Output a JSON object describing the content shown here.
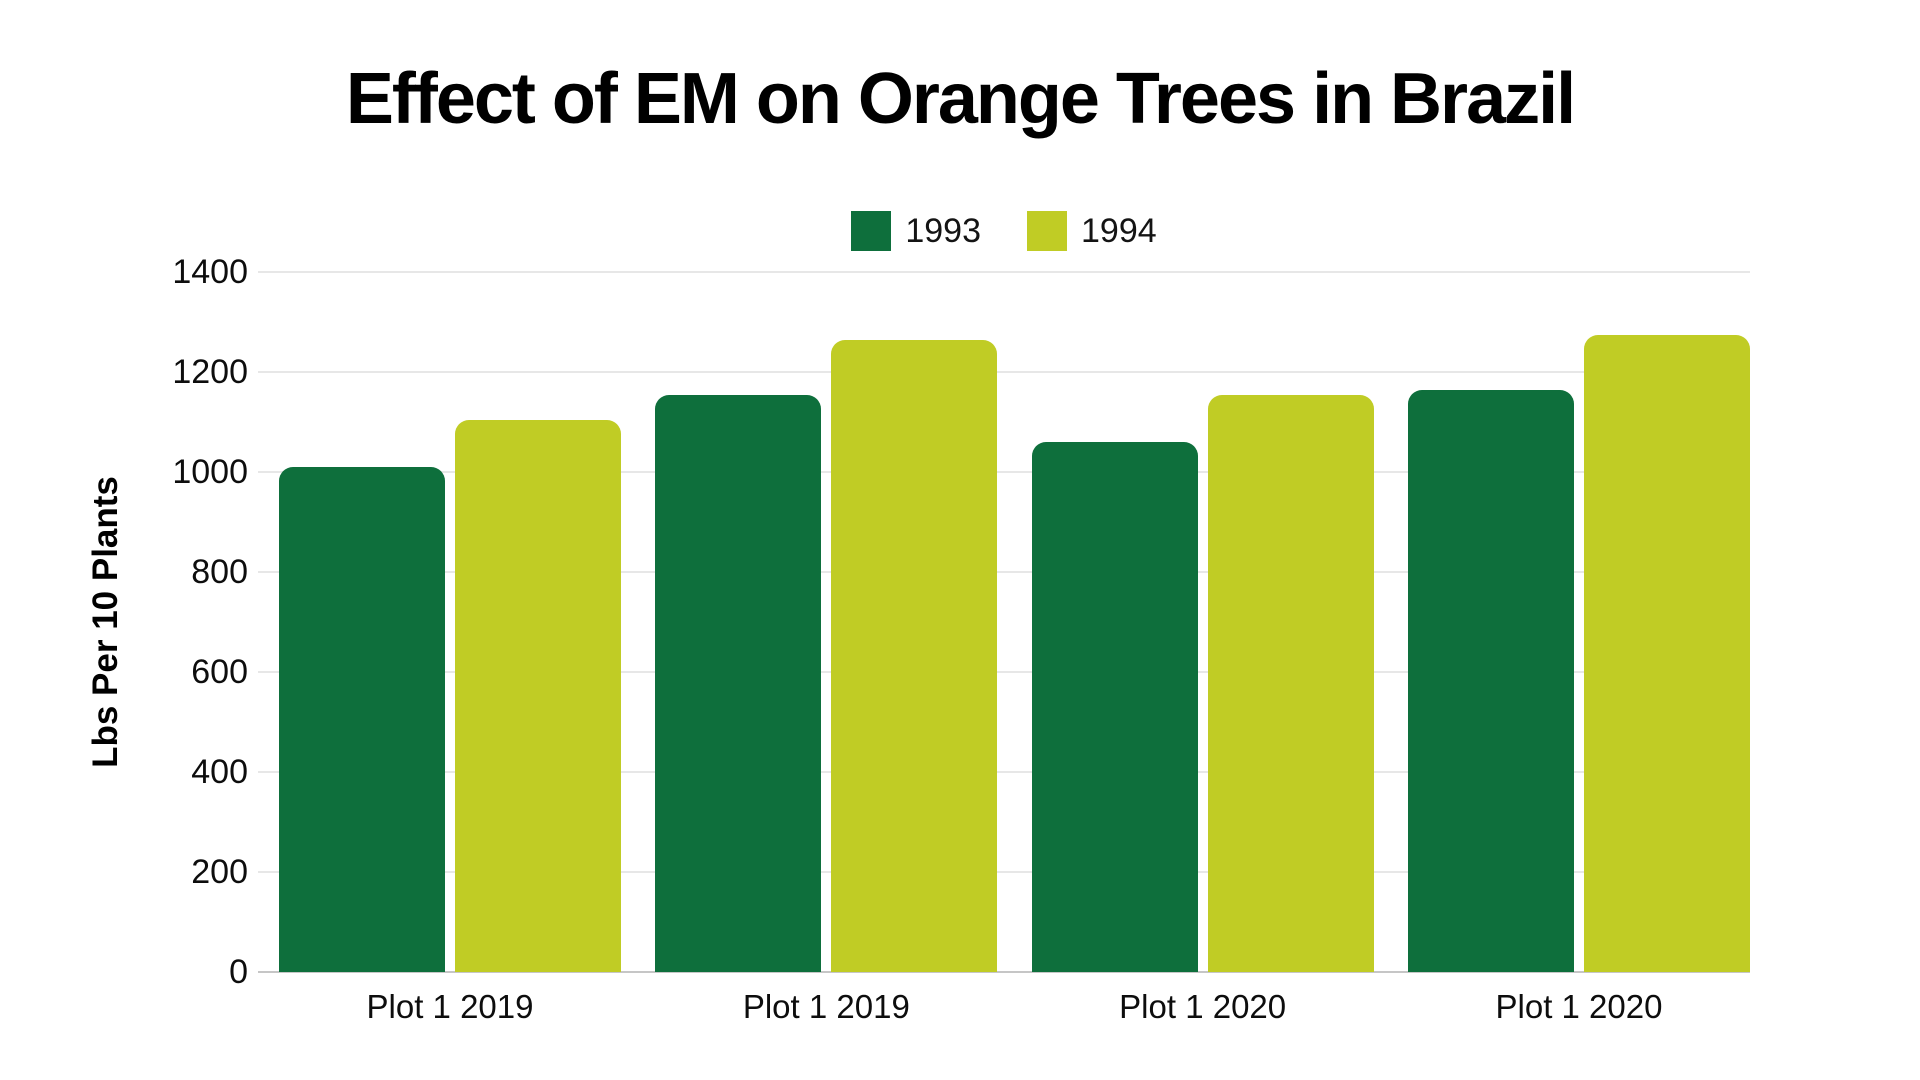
{
  "title": "Effect of EM on Orange Trees in Brazil",
  "chart_data": {
    "type": "bar",
    "title": "Effect of EM on Orange Trees in Brazil",
    "categories": [
      "Plot 1 2019",
      "Plot 1 2019",
      "Plot 1 2020",
      "Plot 1 2020"
    ],
    "series": [
      {
        "name": "1993",
        "color": "#0e6f3c",
        "values": [
          1010,
          1155,
          1060,
          1165
        ]
      },
      {
        "name": "1994",
        "color": "#c0cc25",
        "values": [
          1105,
          1265,
          1155,
          1275
        ]
      }
    ],
    "xlabel": "",
    "ylabel": "Lbs Per 10 Plants",
    "ylim": [
      0,
      1400
    ],
    "yticks": [
      0,
      200,
      400,
      600,
      800,
      1000,
      1200,
      1400
    ],
    "grid": true,
    "legend_position": "top-center"
  },
  "colors": {
    "background": "#ffffff",
    "gridline": "#e7e7e7",
    "baseline": "#c6c6c6",
    "text": "#0d0d0d",
    "title_text": "#000000"
  }
}
